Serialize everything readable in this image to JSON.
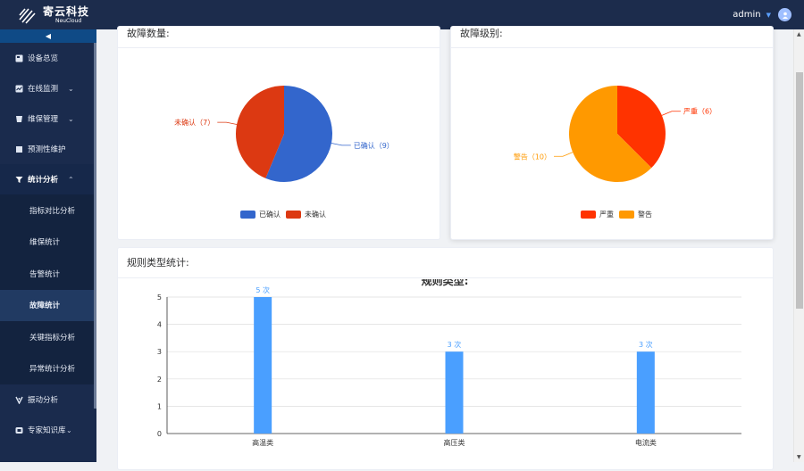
{
  "header": {
    "brand_cn": "寄云科技",
    "brand_en": "NeuCloud",
    "user": "admin"
  },
  "sidebar": {
    "items": [
      {
        "label": "设备总览",
        "icon": "overview-icon"
      },
      {
        "label": "在线监测",
        "icon": "monitor-icon"
      },
      {
        "label": "维保管理",
        "icon": "maintenance-icon"
      },
      {
        "label": "预测性维护",
        "icon": "predict-icon"
      },
      {
        "label": "统计分析",
        "icon": "filter-icon"
      }
    ],
    "subitems": [
      "指标对比分析",
      "维保统计",
      "告警统计",
      "故障统计",
      "关键指标分析",
      "异常统计分析"
    ],
    "bottom": [
      {
        "label": "振动分析",
        "icon": "vibration-icon"
      },
      {
        "label": "专家知识库",
        "icon": "knowledge-icon"
      }
    ]
  },
  "cards": {
    "fault_count": "故障数量:",
    "fault_level": "故障级别:",
    "rule_type": "规则类型统计:"
  },
  "chart_data": [
    {
      "type": "pie",
      "labels": [
        "已确认",
        "未确认"
      ],
      "values": [
        9,
        7
      ],
      "colors": [
        "#3366cc",
        "#dc3912"
      ],
      "slice_labels": [
        "已确认（9）",
        "未确认（7）"
      ],
      "legend": "bottom"
    },
    {
      "type": "pie",
      "labels": [
        "严重",
        "警告"
      ],
      "values": [
        6,
        10
      ],
      "colors": [
        "#ff3300",
        "#ff9900"
      ],
      "slice_labels": [
        "严重（6）",
        "警告（10）"
      ],
      "legend": "bottom"
    },
    {
      "type": "bar",
      "title": "规则类型:",
      "categories": [
        "高温类",
        "高压类",
        "电流类"
      ],
      "values": [
        5,
        3,
        3
      ],
      "data_labels": [
        "5 次",
        "3 次",
        "3 次"
      ],
      "ylim": [
        0,
        5
      ],
      "yticks": [
        "0",
        "1",
        "2",
        "3",
        "4",
        "5"
      ],
      "color": "#4a9fff",
      "grid": true
    }
  ]
}
